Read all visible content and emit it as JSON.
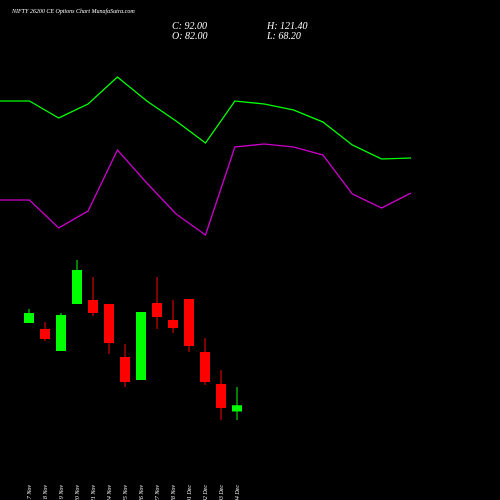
{
  "chart_data": [
    {
      "type": "line",
      "title": "NIFTY 26200  CE Options Chart MunafaSutra.com",
      "header": [
        "C: 92.00",
        "H: 121.40",
        "O: 82.00",
        "L: 68.20"
      ],
      "series": [
        {
          "color": "#00ff00",
          "values": [
            299,
            299,
            282,
            296,
            323,
            299,
            279,
            257,
            299,
            296,
            290,
            278,
            255,
            241,
            242
          ]
        },
        {
          "color": "#cc00cc",
          "values": [
            200,
            200,
            172,
            189,
            250,
            217,
            186,
            165,
            253,
            256,
            253,
            245,
            206,
            192,
            207
          ]
        }
      ]
    },
    {
      "type": "candlestick",
      "categories": [
        "17 Nov",
        "18 Nov",
        "19 Nov",
        "20 Nov",
        "21 Nov",
        "24 Nov",
        "25 Nov",
        "26 Nov",
        "27 Nov",
        "28 Nov",
        "01 Dec",
        "02 Dec",
        "03 Dec",
        "04 Dec"
      ],
      "open": [
        224.7,
        215.0,
        179.5,
        255.3,
        261.8,
        255.3,
        169.8,
        132.7,
        256.9,
        229.5,
        263.4,
        177.9,
        126.3,
        82
      ],
      "high": [
        247.2,
        226.3,
        240.8,
        326.3,
        298.9,
        255.3,
        190.8,
        242.4,
        298.9,
        261.8,
        263.4,
        200.5,
        148.9,
        121.4
      ],
      "low": [
        224.7,
        195.6,
        179.5,
        255.3,
        236.0,
        174.7,
        121.4,
        132.7,
        215.0,
        208.5,
        177.9,
        124.7,
        68.2,
        68.2
      ],
      "close": [
        240.8,
        198.9,
        237.6,
        310.2,
        240.8,
        192.4,
        129.5,
        242.4,
        234.3,
        216.6,
        187.6,
        129.5,
        87.6,
        92
      ],
      "up_color": "#00ff00",
      "down_color": "#ff0000"
    }
  ]
}
